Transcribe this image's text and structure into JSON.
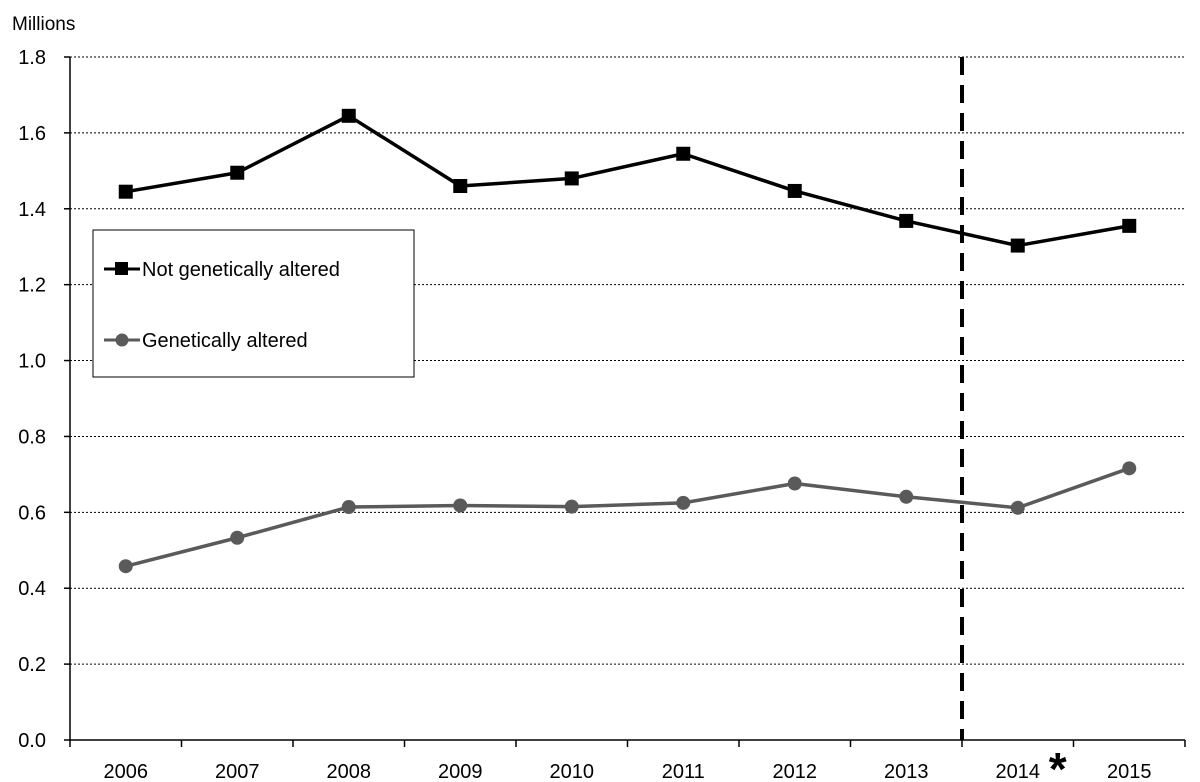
{
  "chart_data": {
    "type": "line",
    "unit_label": "Millions",
    "categories": [
      "2006",
      "2007",
      "2008",
      "2009",
      "2010",
      "2011",
      "2012",
      "2013",
      "2014",
      "2015"
    ],
    "category_marker": {
      "category": "2014",
      "symbol": "*"
    },
    "ylim": [
      0,
      1.8
    ],
    "yticks": [
      "0.0",
      "0.2",
      "0.4",
      "0.6",
      "0.8",
      "1.0",
      "1.2",
      "1.4",
      "1.6",
      "1.8"
    ],
    "grid": "horizontal-dotted",
    "legend_position": "left",
    "reference_line": {
      "type": "dashed-vertical",
      "between": [
        "2013",
        "2014"
      ]
    },
    "series": [
      {
        "name": "Not genetically altered",
        "color": "#000000",
        "marker": "square",
        "values": [
          1.445,
          1.495,
          1.645,
          1.46,
          1.48,
          1.545,
          1.447,
          1.368,
          1.303,
          1.355
        ]
      },
      {
        "name": "Genetically altered",
        "color": "#5a5a5a",
        "marker": "circle",
        "values": [
          0.458,
          0.533,
          0.614,
          0.618,
          0.615,
          0.625,
          0.676,
          0.641,
          0.612,
          0.716
        ]
      }
    ]
  }
}
